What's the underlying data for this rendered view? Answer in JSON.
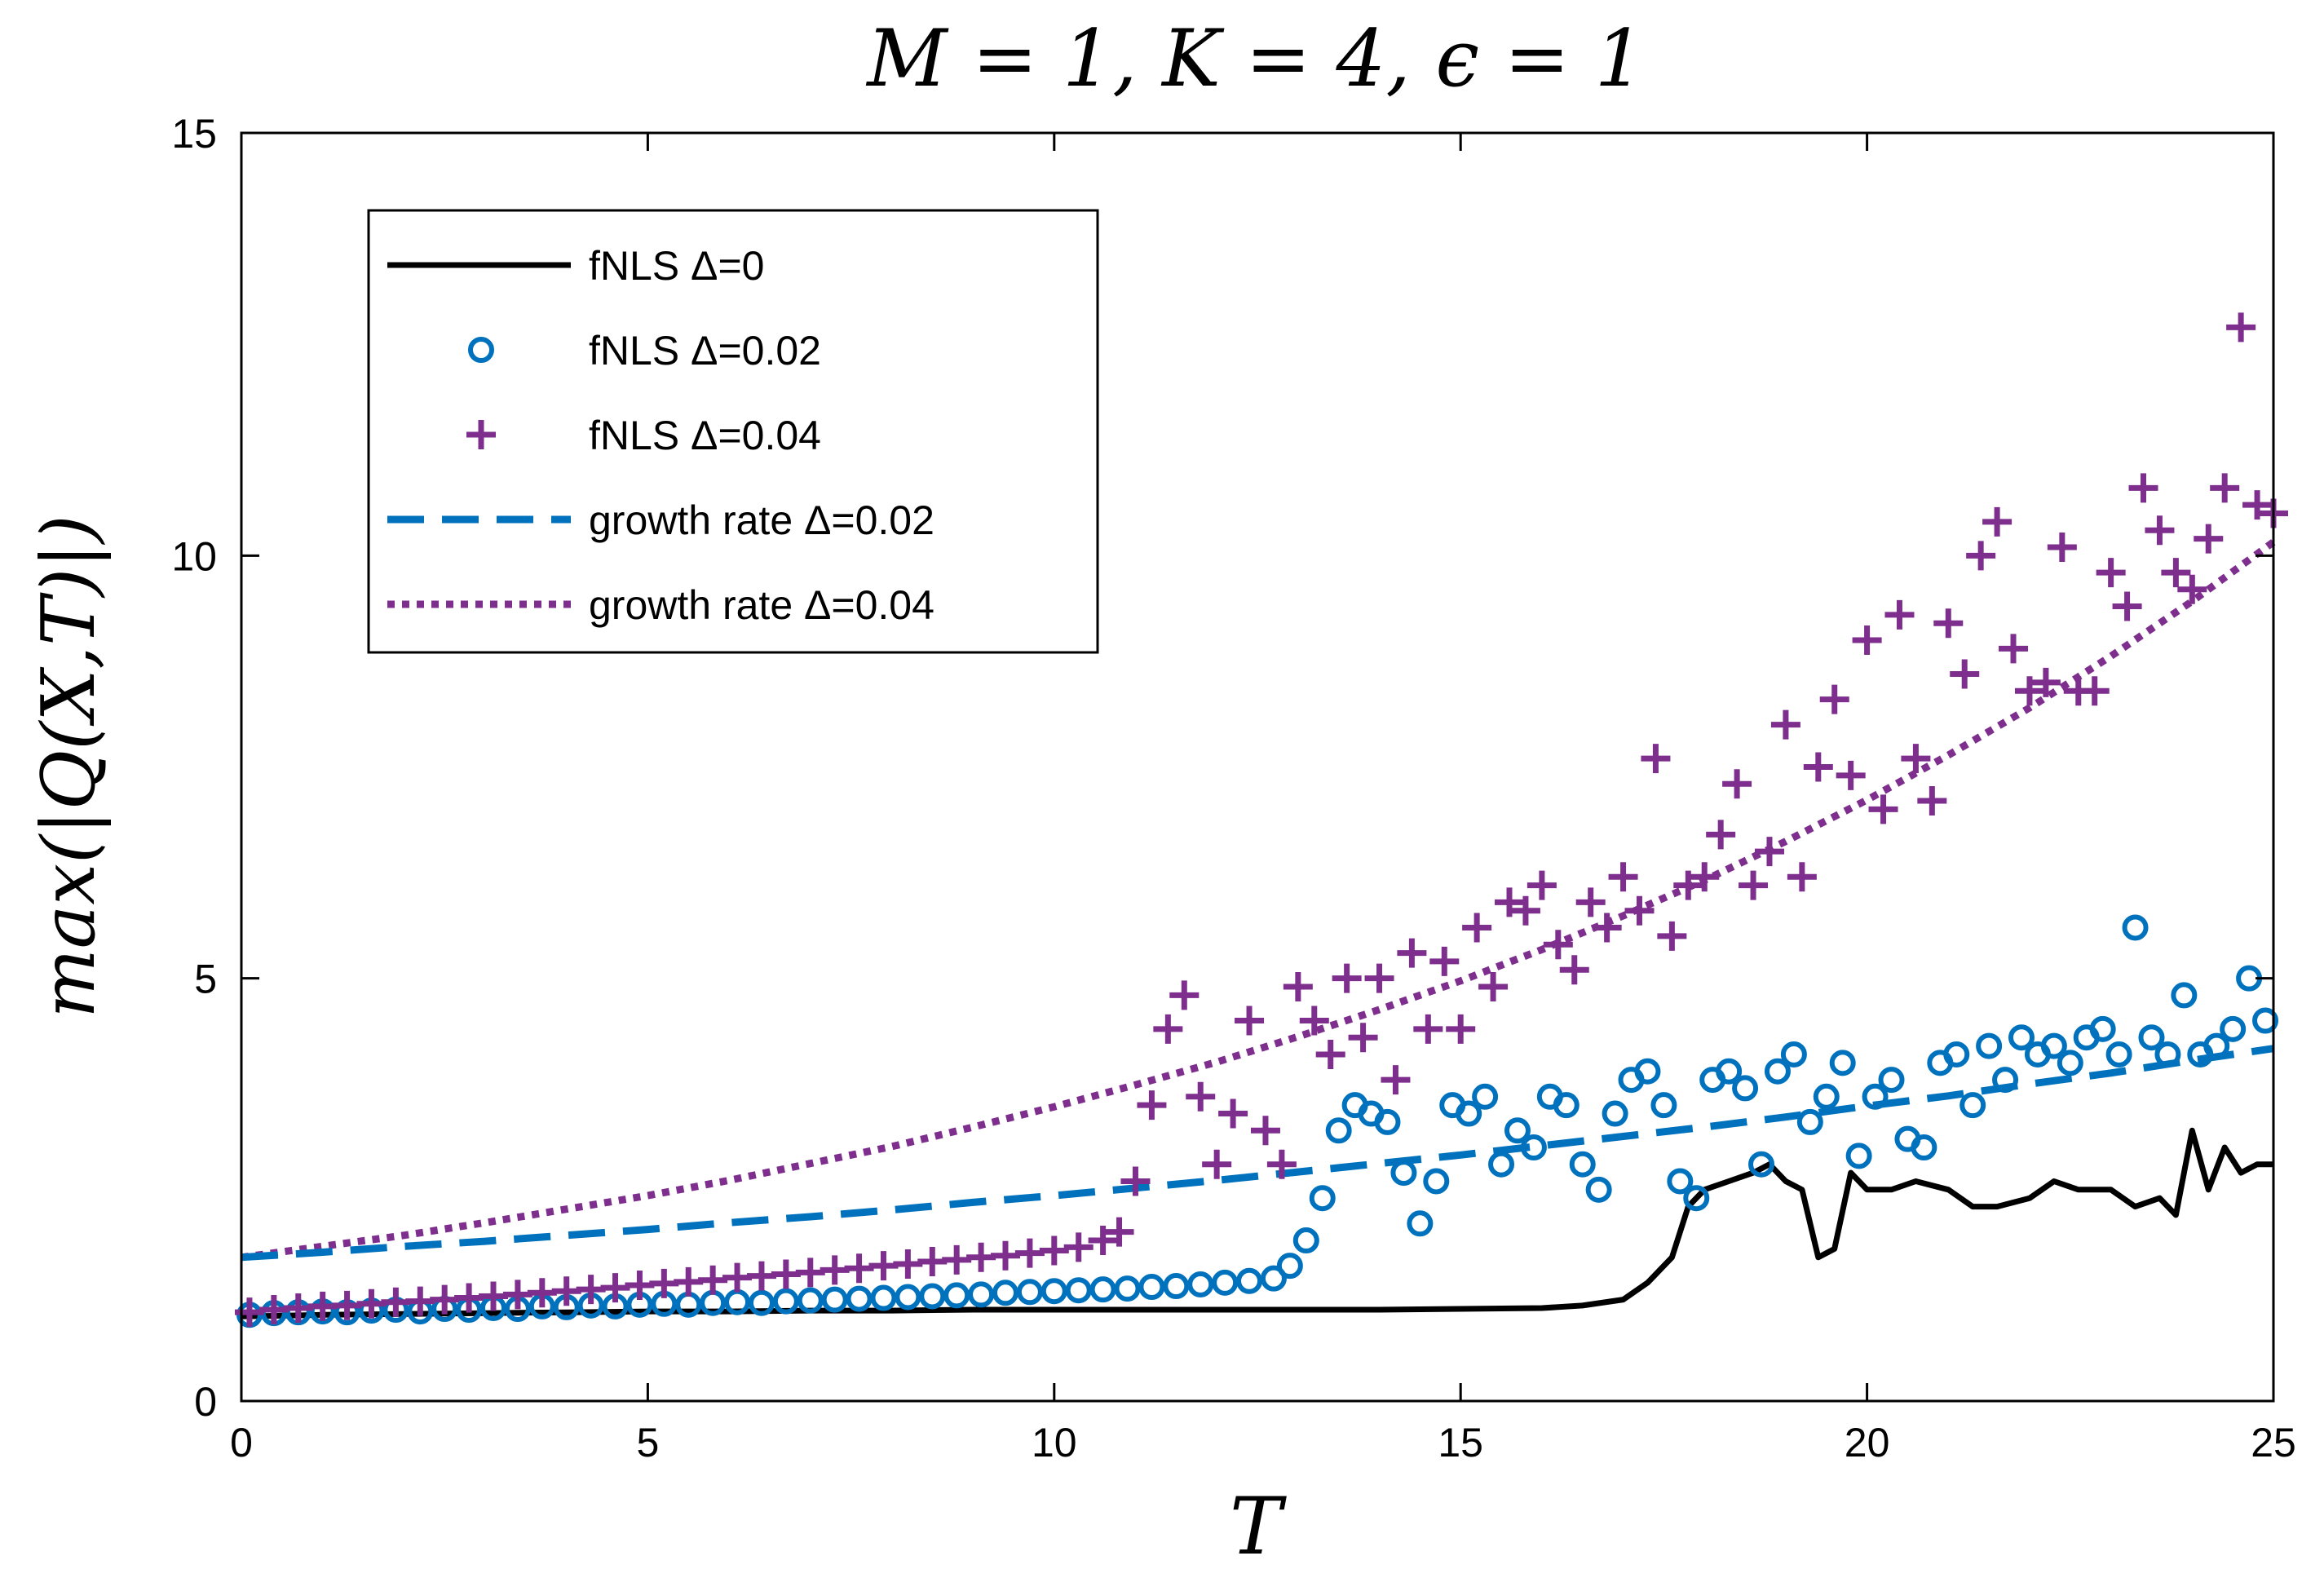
{
  "chart_data": {
    "type": "scatter",
    "title": "M = 1, K = 4, ϵ = 1",
    "xlabel": "T",
    "ylabel": "max(|Q(X,T)|)",
    "xlim": [
      0,
      25
    ],
    "ylim": [
      0,
      15
    ],
    "x_ticks": [
      "0",
      "5",
      "10",
      "15",
      "20",
      "25"
    ],
    "y_ticks": [
      "0",
      "5",
      "10",
      "15"
    ],
    "grid": false,
    "legend_position": "top-left",
    "series": [
      {
        "name": "fNLS Δ=0",
        "style": "solid-line",
        "color": "#000000",
        "x": [
          0,
          1,
          2,
          3,
          4,
          5,
          6,
          7,
          8,
          9,
          10,
          11,
          12,
          13,
          14,
          15,
          16,
          16.5,
          17,
          17.3,
          17.6,
          17.8,
          18,
          18.3,
          18.6,
          18.8,
          19,
          19.2,
          19.4,
          19.6,
          19.8,
          20,
          20.3,
          20.6,
          21,
          21.3,
          21.6,
          22,
          22.3,
          22.6,
          23,
          23.3,
          23.6,
          23.8,
          24,
          24.2,
          24.4,
          24.6,
          24.8,
          25
        ],
        "y": [
          1.0,
          1.02,
          1.03,
          1.04,
          1.05,
          1.06,
          1.06,
          1.07,
          1.07,
          1.08,
          1.08,
          1.08,
          1.08,
          1.08,
          1.08,
          1.09,
          1.1,
          1.13,
          1.2,
          1.4,
          1.7,
          2.3,
          2.5,
          2.6,
          2.7,
          2.8,
          2.6,
          2.5,
          1.7,
          1.8,
          2.7,
          2.5,
          2.5,
          2.6,
          2.5,
          2.3,
          2.3,
          2.4,
          2.6,
          2.5,
          2.5,
          2.3,
          2.4,
          2.2,
          3.2,
          2.5,
          3.0,
          2.7,
          2.8,
          2.8
        ]
      },
      {
        "name": "fNLS Δ=0.02",
        "style": "circle",
        "color": "#0072BD",
        "x": [
          0.1,
          0.4,
          0.7,
          1.0,
          1.3,
          1.6,
          1.9,
          2.2,
          2.5,
          2.8,
          3.1,
          3.4,
          3.7,
          4.0,
          4.3,
          4.6,
          4.9,
          5.2,
          5.5,
          5.8,
          6.1,
          6.4,
          6.7,
          7.0,
          7.3,
          7.6,
          7.9,
          8.2,
          8.5,
          8.8,
          9.1,
          9.4,
          9.7,
          10.0,
          10.3,
          10.6,
          10.9,
          11.2,
          11.5,
          11.8,
          12.1,
          12.4,
          12.7,
          12.9,
          13.1,
          13.3,
          13.5,
          13.7,
          13.9,
          14.1,
          14.3,
          14.5,
          14.7,
          14.9,
          15.1,
          15.3,
          15.5,
          15.7,
          15.9,
          16.1,
          16.3,
          16.5,
          16.7,
          16.9,
          17.1,
          17.3,
          17.5,
          17.7,
          17.9,
          18.1,
          18.3,
          18.5,
          18.7,
          18.9,
          19.1,
          19.3,
          19.5,
          19.7,
          19.9,
          20.1,
          20.3,
          20.5,
          20.7,
          20.9,
          21.1,
          21.3,
          21.5,
          21.7,
          21.9,
          22.1,
          22.3,
          22.5,
          22.7,
          22.9,
          23.1,
          23.3,
          23.5,
          23.7,
          23.9,
          24.1,
          24.3,
          24.5,
          24.7,
          24.9
        ],
        "y": [
          1.02,
          1.04,
          1.05,
          1.06,
          1.05,
          1.07,
          1.08,
          1.06,
          1.09,
          1.08,
          1.1,
          1.09,
          1.12,
          1.11,
          1.13,
          1.12,
          1.14,
          1.15,
          1.14,
          1.16,
          1.17,
          1.16,
          1.18,
          1.19,
          1.2,
          1.21,
          1.22,
          1.23,
          1.24,
          1.25,
          1.26,
          1.28,
          1.29,
          1.3,
          1.31,
          1.32,
          1.33,
          1.35,
          1.36,
          1.38,
          1.4,
          1.42,
          1.45,
          1.6,
          1.9,
          2.4,
          3.2,
          3.5,
          3.4,
          3.3,
          2.7,
          2.1,
          2.6,
          3.5,
          3.4,
          3.6,
          2.8,
          3.2,
          3.0,
          3.6,
          3.5,
          2.8,
          2.5,
          3.4,
          3.8,
          3.9,
          3.5,
          2.6,
          2.4,
          3.8,
          3.9,
          3.7,
          2.8,
          3.9,
          4.1,
          3.3,
          3.6,
          4.0,
          2.9,
          3.6,
          3.8,
          3.1,
          3.0,
          4.0,
          4.1,
          3.5,
          4.2,
          3.8,
          4.3,
          4.1,
          4.2,
          4.0,
          4.3,
          4.4,
          4.1,
          5.6,
          4.3,
          4.1,
          4.8,
          4.1,
          4.2,
          4.4,
          5.0,
          4.5
        ]
      },
      {
        "name": "fNLS Δ=0.04",
        "style": "plus",
        "color": "#7E2F8E",
        "x": [
          0.1,
          0.4,
          0.7,
          1.0,
          1.3,
          1.6,
          1.9,
          2.2,
          2.5,
          2.8,
          3.1,
          3.4,
          3.7,
          4.0,
          4.3,
          4.6,
          4.9,
          5.2,
          5.5,
          5.8,
          6.1,
          6.4,
          6.7,
          7.0,
          7.3,
          7.6,
          7.9,
          8.2,
          8.5,
          8.8,
          9.1,
          9.4,
          9.7,
          10.0,
          10.3,
          10.6,
          10.8,
          11.0,
          11.2,
          11.4,
          11.6,
          11.8,
          12.0,
          12.2,
          12.4,
          12.6,
          12.8,
          13.0,
          13.2,
          13.4,
          13.6,
          13.8,
          14.0,
          14.2,
          14.4,
          14.6,
          14.8,
          15.0,
          15.2,
          15.4,
          15.6,
          15.8,
          16.0,
          16.2,
          16.4,
          16.6,
          16.8,
          17.0,
          17.2,
          17.4,
          17.6,
          17.8,
          18.0,
          18.2,
          18.4,
          18.6,
          18.8,
          19.0,
          19.2,
          19.4,
          19.6,
          19.8,
          20.0,
          20.2,
          20.4,
          20.6,
          20.8,
          21.0,
          21.2,
          21.4,
          21.6,
          21.8,
          22.0,
          22.2,
          22.4,
          22.6,
          22.8,
          23.0,
          23.2,
          23.4,
          23.6,
          23.8,
          24.0,
          24.2,
          24.4,
          24.6,
          24.8,
          25.0
        ],
        "y": [
          1.05,
          1.08,
          1.1,
          1.12,
          1.13,
          1.15,
          1.17,
          1.18,
          1.2,
          1.22,
          1.24,
          1.26,
          1.28,
          1.3,
          1.32,
          1.34,
          1.37,
          1.39,
          1.41,
          1.43,
          1.46,
          1.48,
          1.5,
          1.52,
          1.55,
          1.57,
          1.6,
          1.62,
          1.65,
          1.67,
          1.7,
          1.72,
          1.75,
          1.78,
          1.82,
          1.9,
          2.0,
          2.6,
          3.5,
          4.4,
          4.8,
          3.6,
          2.8,
          3.4,
          4.5,
          3.2,
          2.8,
          4.9,
          4.5,
          4.1,
          5.0,
          4.3,
          5.0,
          3.8,
          5.3,
          4.4,
          5.2,
          4.4,
          5.6,
          4.9,
          5.9,
          5.8,
          6.1,
          5.4,
          5.1,
          5.9,
          5.6,
          6.2,
          5.8,
          7.6,
          5.5,
          6.1,
          6.2,
          6.7,
          7.3,
          6.1,
          6.5,
          8.0,
          6.2,
          7.5,
          8.3,
          7.4,
          9.0,
          7.0,
          9.3,
          7.6,
          7.1,
          9.2,
          8.6,
          10.0,
          10.4,
          8.9,
          8.4,
          8.5,
          10.1,
          8.4,
          8.4,
          9.8,
          9.4,
          10.8,
          10.3,
          9.8,
          9.6,
          10.2,
          10.8,
          12.7,
          10.6,
          10.5
        ]
      },
      {
        "name": "growth rate Δ=0.02",
        "style": "dashed-line",
        "color": "#0072BD",
        "x": [
          0,
          1,
          2,
          3,
          4,
          5,
          6,
          7,
          8,
          9,
          10,
          11,
          12,
          13,
          14,
          15,
          16,
          17,
          18,
          19,
          20,
          21,
          22,
          23,
          24,
          25
        ],
        "y": [
          1.7,
          1.76,
          1.83,
          1.89,
          1.96,
          2.03,
          2.11,
          2.18,
          2.26,
          2.35,
          2.43,
          2.52,
          2.61,
          2.71,
          2.81,
          2.91,
          3.02,
          3.13,
          3.24,
          3.36,
          3.49,
          3.61,
          3.75,
          3.88,
          4.03,
          4.17
        ]
      },
      {
        "name": "growth rate Δ=0.04",
        "style": "dotted-line",
        "color": "#7E2F8E",
        "x": [
          0,
          1,
          2,
          3,
          4,
          5,
          6,
          7,
          8,
          9,
          10,
          11,
          12,
          13,
          14,
          15,
          16,
          17,
          18,
          19,
          20,
          21,
          22,
          23,
          24,
          25
        ],
        "y": [
          1.7,
          1.83,
          1.96,
          2.11,
          2.27,
          2.43,
          2.61,
          2.81,
          3.01,
          3.24,
          3.48,
          3.74,
          4.01,
          4.31,
          4.63,
          4.97,
          5.34,
          5.74,
          6.16,
          6.62,
          7.11,
          7.64,
          8.2,
          8.81,
          9.46,
          10.16
        ]
      }
    ]
  }
}
